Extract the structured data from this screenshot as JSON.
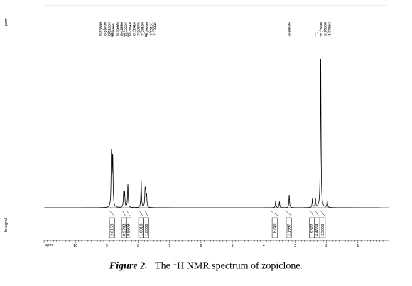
{
  "chart_data": {
    "type": "line",
    "title": "",
    "xlabel": "ppm",
    "ylabel": "ppm",
    "integral_axis_label": "Integral",
    "x_direction": "decreasing",
    "xlim": [
      11.0,
      0.0
    ],
    "x_ticks": [
      10,
      9,
      8,
      7,
      6,
      5,
      4,
      3,
      2,
      1
    ],
    "grid": false,
    "peak_labels": [
      "8.85599",
      "8.84700",
      "8.81665",
      "8.80821",
      "8.46324",
      "8.43286",
      "8.33225",
      "8.32518",
      "8.32416",
      "7.90545",
      "7.78120",
      "7.76299",
      "7.73151",
      "7.72295"
    ],
    "peak_labels_mid": [
      "3.18794"
    ],
    "peak_labels_right": [
      "2.35296",
      "2.18538",
      "1.97653"
    ],
    "integrals": [
      {
        "value": "2.0159",
        "from": 8.95,
        "to": 8.72
      },
      {
        "value": "0.9743",
        "from": 8.52,
        "to": 8.38
      },
      {
        "value": "0.9909",
        "from": 8.38,
        "to": 8.24
      },
      {
        "value": "1.0018",
        "from": 7.99,
        "to": 7.82
      },
      {
        "value": "1.0000",
        "from": 7.82,
        "to": 7.66
      },
      {
        "value": "1.8240",
        "from": 3.85,
        "to": 3.45
      },
      {
        "value": "2.1997",
        "from": 3.35,
        "to": 3.05
      },
      {
        "value": "1.9377",
        "from": 2.55,
        "to": 2.38
      },
      {
        "value": "4.4664",
        "from": 2.38,
        "to": 2.22
      },
      {
        "value": "3.5058",
        "from": 2.22,
        "to": 2.02
      }
    ],
    "peaks": [
      {
        "x": 8.856,
        "h": 0.21
      },
      {
        "x": 8.847,
        "h": 0.2
      },
      {
        "x": 8.817,
        "h": 0.19
      },
      {
        "x": 8.808,
        "h": 0.18
      },
      {
        "x": 8.463,
        "h": 0.1
      },
      {
        "x": 8.433,
        "h": 0.095
      },
      {
        "x": 8.332,
        "h": 0.085
      },
      {
        "x": 8.325,
        "h": 0.08
      },
      {
        "x": 7.905,
        "h": 0.18
      },
      {
        "x": 7.781,
        "h": 0.105
      },
      {
        "x": 7.763,
        "h": 0.085
      },
      {
        "x": 7.732,
        "h": 0.08
      },
      {
        "x": 3.62,
        "h": 0.045
      },
      {
        "x": 3.5,
        "h": 0.04
      },
      {
        "x": 3.188,
        "h": 0.085
      },
      {
        "x": 2.45,
        "h": 0.055
      },
      {
        "x": 2.353,
        "h": 0.06
      },
      {
        "x": 2.185,
        "h": 1.0
      },
      {
        "x": 1.977,
        "h": 0.045
      }
    ]
  },
  "caption": {
    "label": "Figure 2.",
    "text_pre": "The ",
    "superscript": "1",
    "text_post": "H NMR spectrum of zopiclone."
  }
}
